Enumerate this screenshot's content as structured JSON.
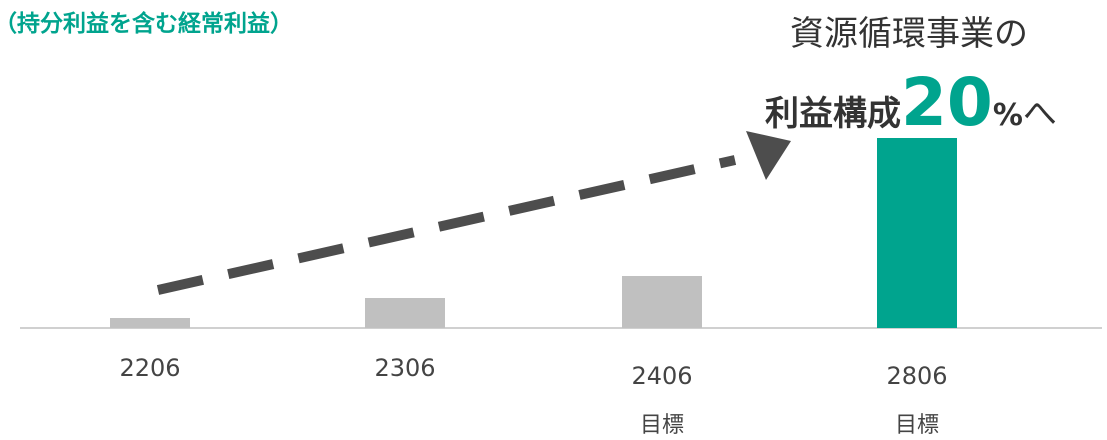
{
  "subtitle": "（持分利益を含む経常利益）",
  "callout": {
    "line1": "資源循環事業の",
    "line2_prefix": "利益構成",
    "line2_number": "20",
    "line2_percent": "%",
    "line2_suffix": "へ"
  },
  "colors": {
    "accent": "#00a48e",
    "bar_gray": "#c0c0c0",
    "arrow": "#4d4d4d",
    "baseline": "#d0d0d0"
  },
  "chart_data": {
    "type": "bar",
    "categories": [
      "2206",
      "2306",
      "2406",
      "2806"
    ],
    "category_sublabels": [
      "",
      "",
      "目標",
      "目標"
    ],
    "values": [
      10,
      30,
      52,
      190
    ],
    "highlight_index": 3,
    "trend_arrow": true,
    "grid": false,
    "title": "",
    "xlabel": "",
    "ylabel": ""
  }
}
